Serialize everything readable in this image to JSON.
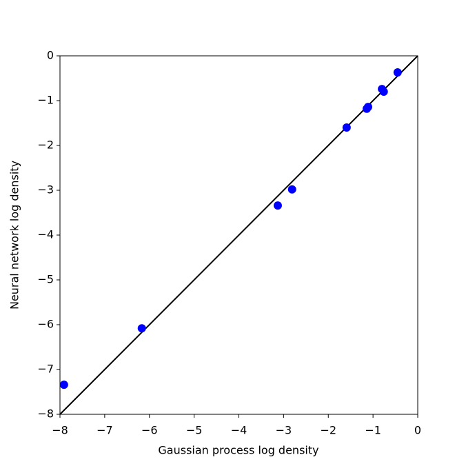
{
  "chart_data": {
    "type": "scatter",
    "xlabel": "Gaussian process log density",
    "ylabel": "Neural network log density",
    "series": [
      {
        "color": "#0000ff",
        "x": [
          -7.91,
          -6.17,
          -3.13,
          -2.81,
          -1.59,
          -1.14,
          -1.11,
          -0.8,
          -0.76,
          -0.45
        ],
        "values": [
          -7.34,
          -6.08,
          -3.34,
          -2.98,
          -1.6,
          -1.18,
          -1.14,
          -0.74,
          -0.8,
          -0.37
        ]
      }
    ],
    "xlim": [
      -8,
      0
    ],
    "ylim": [
      -8,
      0
    ],
    "xticks": [
      {
        "value": -8,
        "label": "−8"
      },
      {
        "value": -7,
        "label": "−7"
      },
      {
        "value": -6,
        "label": "−6"
      },
      {
        "value": -5,
        "label": "−5"
      },
      {
        "value": -4,
        "label": "−4"
      },
      {
        "value": -3,
        "label": "−3"
      },
      {
        "value": -2,
        "label": "−2"
      },
      {
        "value": -1,
        "label": "−1"
      },
      0
    ],
    "yticks": [
      {
        "value": -8,
        "label": "−8"
      },
      {
        "value": -7,
        "label": "−7"
      },
      {
        "value": -6,
        "label": "−6"
      },
      {
        "value": -5,
        "label": "−5"
      },
      {
        "value": -4,
        "label": "−4"
      },
      {
        "value": -3,
        "label": "−3"
      },
      {
        "value": -2,
        "label": "−2"
      },
      {
        "value": -1,
        "label": "−1"
      },
      0
    ]
  }
}
